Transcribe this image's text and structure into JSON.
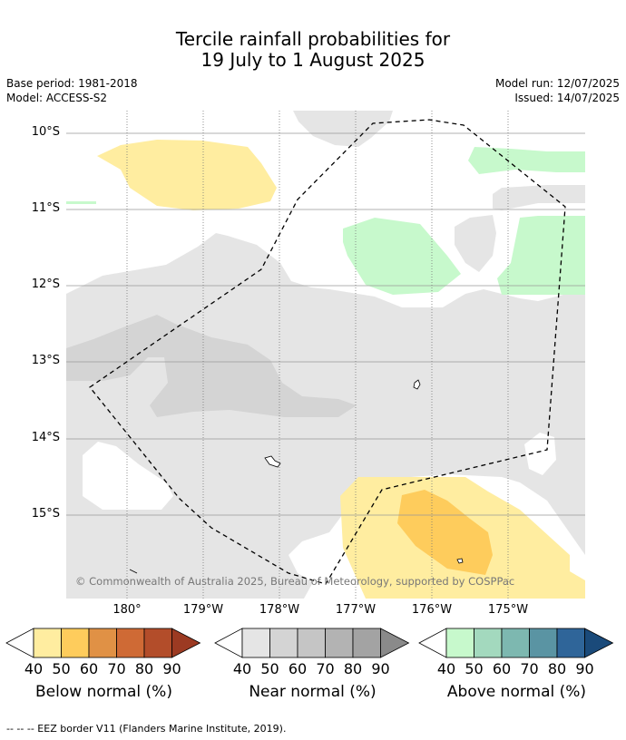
{
  "title": {
    "line1": "Tercile rainfall probabilities for",
    "line2": "19 July to 1 August 2025"
  },
  "meta": {
    "base_period": "Base period: 1981-2018",
    "model": "Model: ACCESS-S2",
    "model_run": "Model run: 12/07/2025",
    "issued": "Issued: 14/07/2025"
  },
  "map": {
    "lat_labels": [
      "10°S",
      "11°S",
      "12°S",
      "13°S",
      "14°S",
      "15°S"
    ],
    "lon_labels": [
      "180°",
      "179°W",
      "178°W",
      "177°W",
      "176°W",
      "175°W"
    ],
    "copyright": "© Commonwealth of Australia 2025, Bureau of Meteorology, supported by COSPPac",
    "categories": {
      "below_normal": "#ffeda0",
      "below_normal_50": "#fecc5c",
      "near_normal": "#e5e5e5",
      "near_normal_50": "#d4d4d4",
      "above_normal": "#c7f9cc"
    }
  },
  "colorbars": [
    {
      "name": "Below normal (%)",
      "ticks": [
        "40",
        "50",
        "60",
        "70",
        "80",
        "90"
      ],
      "colors": [
        "#ffeda0",
        "#fecc5c",
        "#e09145",
        "#cf6a35",
        "#b34d2a",
        "#9c3a22"
      ]
    },
    {
      "name": "Near normal (%)",
      "ticks": [
        "40",
        "50",
        "60",
        "70",
        "80",
        "90"
      ],
      "colors": [
        "#e5e5e5",
        "#d4d4d4",
        "#c5c5c5",
        "#b3b3b3",
        "#a3a3a3",
        "#8a8a8a"
      ]
    },
    {
      "name": "Above normal (%)",
      "ticks": [
        "40",
        "50",
        "60",
        "70",
        "80",
        "90"
      ],
      "colors": [
        "#c7f9cc",
        "#a3d9be",
        "#7db8b0",
        "#5a94a3",
        "#2f6599",
        "#1a4a7a"
      ]
    }
  ],
  "footer": "--  --  -- EEZ border V11 (Flanders Marine Institute, 2019)."
}
